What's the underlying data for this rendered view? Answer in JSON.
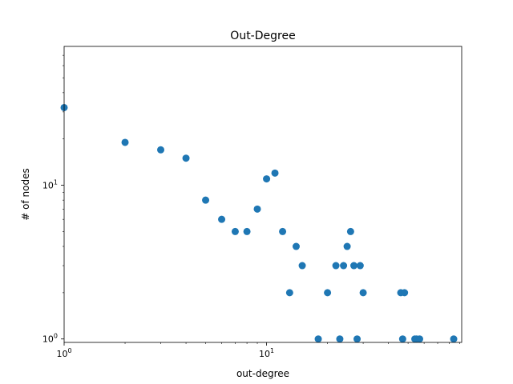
{
  "chart_data": {
    "type": "scatter",
    "title": "Out-Degree",
    "xlabel": "out-degree",
    "ylabel": "# of nodes",
    "xscale": "log",
    "yscale": "log",
    "xlim": [
      1,
      92
    ],
    "ylim": [
      0.95,
      80
    ],
    "grid": false,
    "legend": "none",
    "marker_color": "#1f77b4",
    "x_ticks": [
      {
        "value": 1,
        "base": "10",
        "exp": "0"
      },
      {
        "value": 10,
        "base": "10",
        "exp": "1"
      }
    ],
    "y_ticks": [
      {
        "value": 1,
        "base": "10",
        "exp": "0"
      },
      {
        "value": 10,
        "base": "10",
        "exp": "1"
      }
    ],
    "points": [
      {
        "x": 1,
        "y": 32
      },
      {
        "x": 2,
        "y": 19
      },
      {
        "x": 3,
        "y": 17
      },
      {
        "x": 4,
        "y": 15
      },
      {
        "x": 5,
        "y": 8
      },
      {
        "x": 6,
        "y": 6
      },
      {
        "x": 7,
        "y": 5
      },
      {
        "x": 8,
        "y": 5
      },
      {
        "x": 9,
        "y": 7
      },
      {
        "x": 10,
        "y": 11
      },
      {
        "x": 11,
        "y": 12
      },
      {
        "x": 12,
        "y": 5
      },
      {
        "x": 13,
        "y": 2
      },
      {
        "x": 14,
        "y": 4
      },
      {
        "x": 15,
        "y": 3
      },
      {
        "x": 18,
        "y": 1
      },
      {
        "x": 20,
        "y": 2
      },
      {
        "x": 22,
        "y": 3
      },
      {
        "x": 23,
        "y": 1
      },
      {
        "x": 24,
        "y": 3
      },
      {
        "x": 25,
        "y": 4
      },
      {
        "x": 26,
        "y": 5
      },
      {
        "x": 27,
        "y": 3
      },
      {
        "x": 28,
        "y": 1
      },
      {
        "x": 29,
        "y": 3
      },
      {
        "x": 30,
        "y": 2
      },
      {
        "x": 46,
        "y": 2
      },
      {
        "x": 47,
        "y": 1
      },
      {
        "x": 48,
        "y": 2
      },
      {
        "x": 54,
        "y": 1
      },
      {
        "x": 55,
        "y": 1
      },
      {
        "x": 57,
        "y": 1
      },
      {
        "x": 84,
        "y": 1
      }
    ]
  }
}
